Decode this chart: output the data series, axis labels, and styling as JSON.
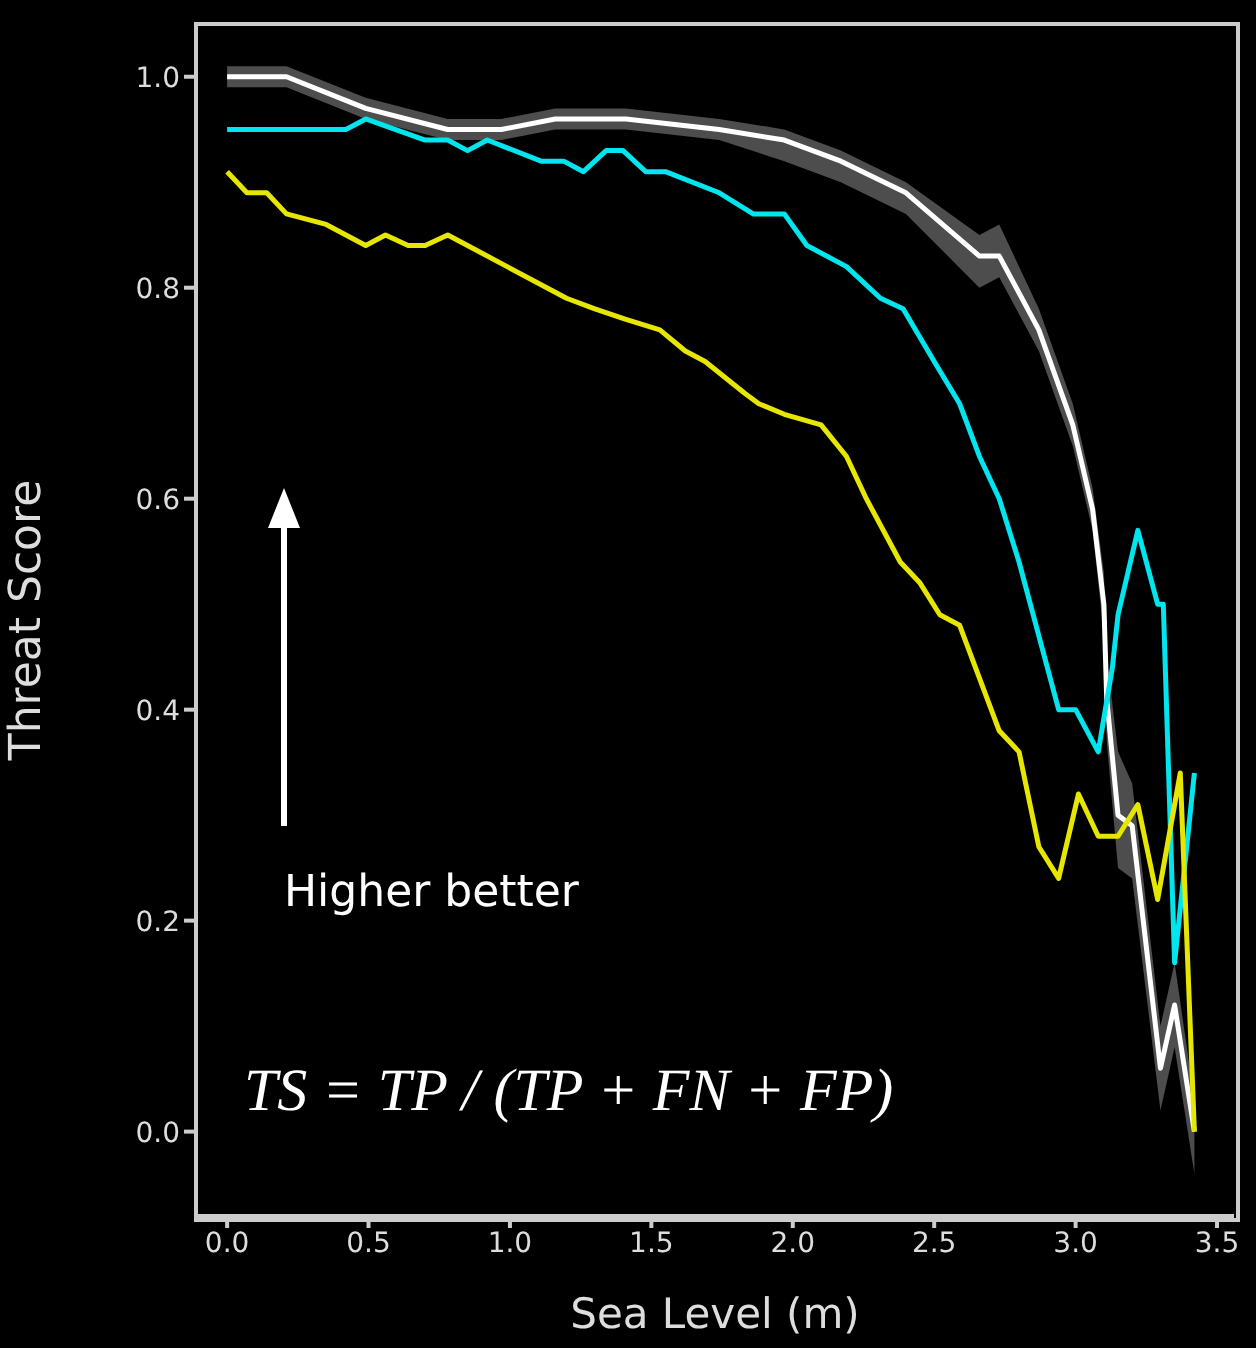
{
  "chart_data": {
    "type": "line",
    "xlabel": "Sea Level (m)",
    "ylabel": "Threat Score",
    "xlim": [
      -0.11,
      3.56
    ],
    "ylim": [
      -0.08,
      1.05
    ],
    "xticks": [
      {
        "value": 0,
        "label": "0.0"
      },
      0.5,
      {
        "value": 1,
        "label": "1.0"
      },
      1.5,
      {
        "value": 2,
        "label": "2.0"
      },
      2.5,
      {
        "value": 3,
        "label": "3.0"
      },
      3.5
    ],
    "yticks": [
      {
        "value": 0,
        "label": "0.0"
      },
      0.2,
      0.4,
      0.6,
      0.8,
      {
        "value": 1,
        "label": "1.0"
      }
    ],
    "grid": false,
    "legend": false,
    "marker": "none",
    "line_style": "solid",
    "series": [
      {
        "color": "#ffffff",
        "x": [
          0,
          0.21,
          0.49,
          0.78,
          0.97,
          1.16,
          1.41,
          1.74,
          1.97,
          2.17,
          2.4,
          2.66,
          2.73,
          2.87,
          2.99,
          3.06,
          3.1,
          3.11,
          3.15,
          3.2,
          3.3,
          3.35,
          3.42
        ],
        "values": [
          1.0,
          1.0,
          0.97,
          0.95,
          0.95,
          0.96,
          0.96,
          0.95,
          0.94,
          0.92,
          0.89,
          0.83,
          0.83,
          0.76,
          0.67,
          0.59,
          0.5,
          0.41,
          0.3,
          0.29,
          0.06,
          0.12,
          0.0
        ],
        "lower": [
          0.99,
          0.99,
          0.96,
          0.94,
          0.94,
          0.95,
          0.95,
          0.94,
          0.92,
          0.9,
          0.87,
          0.8,
          0.81,
          0.74,
          0.65,
          0.57,
          0.47,
          0.37,
          0.25,
          0.24,
          0.02,
          0.08,
          -0.04
        ],
        "upper": [
          1.01,
          1.01,
          0.98,
          0.96,
          0.96,
          0.97,
          0.97,
          0.96,
          0.95,
          0.93,
          0.9,
          0.85,
          0.86,
          0.78,
          0.69,
          0.61,
          0.53,
          0.45,
          0.36,
          0.33,
          0.1,
          0.16,
          0.03
        ]
      },
      {
        "color": "#00e5ee",
        "x": [
          0,
          0.21,
          0.42,
          0.49,
          0.7,
          0.78,
          0.85,
          0.92,
          1.11,
          1.19,
          1.26,
          1.34,
          1.4,
          1.48,
          1.55,
          1.74,
          1.86,
          1.97,
          2.05,
          2.19,
          2.31,
          2.39,
          2.5,
          2.59,
          2.66,
          2.73,
          2.8,
          2.87,
          2.94,
          3.0,
          3.08,
          3.13,
          3.15,
          3.22,
          3.29,
          3.31,
          3.35,
          3.42
        ],
        "values": [
          0.95,
          0.95,
          0.95,
          0.96,
          0.94,
          0.94,
          0.93,
          0.94,
          0.92,
          0.92,
          0.91,
          0.93,
          0.93,
          0.91,
          0.91,
          0.89,
          0.87,
          0.87,
          0.84,
          0.82,
          0.79,
          0.78,
          0.73,
          0.69,
          0.64,
          0.6,
          0.54,
          0.47,
          0.4,
          0.4,
          0.36,
          0.44,
          0.49,
          0.57,
          0.5,
          0.5,
          0.16,
          0.34
        ]
      },
      {
        "color": "#e6e600",
        "x": [
          0,
          0.07,
          0.14,
          0.21,
          0.35,
          0.42,
          0.49,
          0.56,
          0.64,
          0.7,
          0.78,
          0.85,
          0.99,
          1.2,
          1.3,
          1.41,
          1.53,
          1.62,
          1.69,
          1.83,
          1.88,
          1.97,
          2.1,
          2.19,
          2.26,
          2.38,
          2.45,
          2.52,
          2.59,
          2.73,
          2.8,
          2.87,
          2.94,
          3.01,
          3.08,
          3.15,
          3.22,
          3.29,
          3.37,
          3.42
        ],
        "values": [
          0.91,
          0.89,
          0.89,
          0.87,
          0.86,
          0.85,
          0.84,
          0.85,
          0.84,
          0.84,
          0.85,
          0.84,
          0.82,
          0.79,
          0.78,
          0.77,
          0.76,
          0.74,
          0.73,
          0.7,
          0.69,
          0.68,
          0.67,
          0.64,
          0.6,
          0.54,
          0.52,
          0.49,
          0.48,
          0.38,
          0.36,
          0.27,
          0.24,
          0.32,
          0.28,
          0.28,
          0.31,
          0.22,
          0.34,
          0.0
        ]
      }
    ],
    "annotations": [
      "Higher better",
      "TS = TP / (TP + FN + FP)"
    ]
  }
}
